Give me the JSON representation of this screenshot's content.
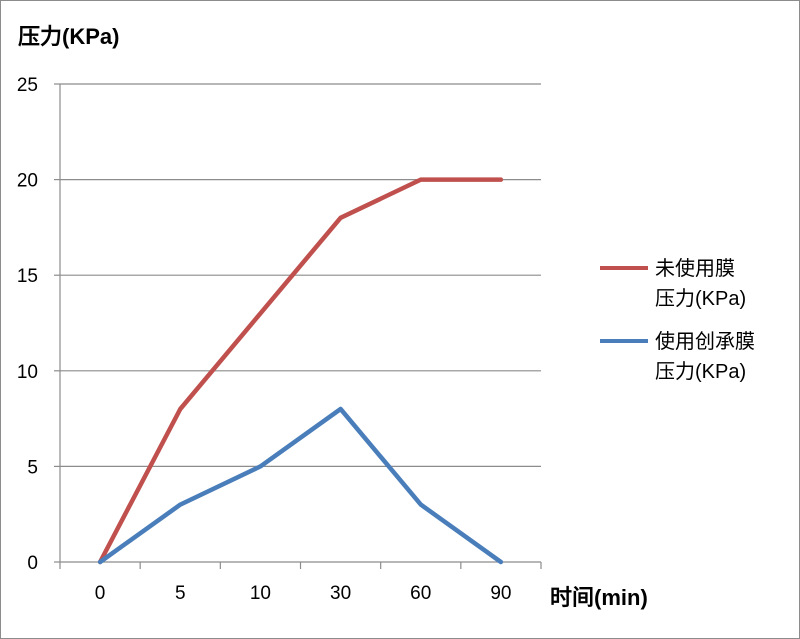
{
  "chart_data": {
    "type": "line",
    "ylabel": "压力(KPa)",
    "xlabel": "时间(min)",
    "categories": [
      "0",
      "5",
      "10",
      "30",
      "60",
      "90"
    ],
    "ylim": [
      0,
      25
    ],
    "yticks": [
      0,
      5,
      10,
      15,
      20,
      25
    ],
    "grid": true,
    "legend_position": "right",
    "series": [
      {
        "name": "未使用膜压力(KPa)",
        "legend_lines": [
          "未使用膜",
          "压力(KPa)"
        ],
        "color": "#c0504d",
        "values": [
          0,
          8,
          13,
          18,
          20,
          20
        ]
      },
      {
        "name": "使用创承膜压力(KPa)",
        "legend_lines": [
          "使用创承膜",
          "压力(KPa)"
        ],
        "color": "#4a7ebb",
        "values": [
          0,
          3,
          5,
          8,
          3,
          0
        ]
      }
    ]
  }
}
